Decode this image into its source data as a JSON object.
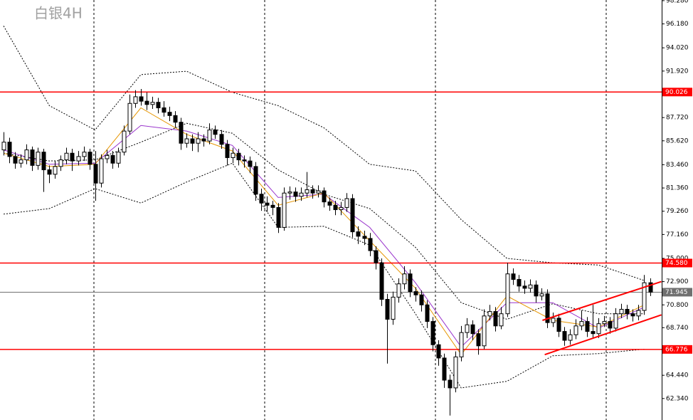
{
  "chart_data": {
    "type": "candlestick",
    "title": "白银4H",
    "ylim": [
      60.4,
      98.34
    ],
    "yticks": [
      {
        "value": 98.28,
        "label": "98.280"
      },
      {
        "value": 96.18,
        "label": "96.180"
      },
      {
        "value": 94.02,
        "label": "94.020"
      },
      {
        "value": 91.92,
        "label": "91.920"
      },
      {
        "value": 87.72,
        "label": "87.720"
      },
      {
        "value": 85.62,
        "label": "85.620"
      },
      {
        "value": 83.46,
        "label": "83.460"
      },
      {
        "value": 81.36,
        "label": "81.360"
      },
      {
        "value": 79.26,
        "label": "79.260"
      },
      {
        "value": 77.16,
        "label": "77.160"
      },
      {
        "value": 75.0,
        "label": "75.000"
      },
      {
        "value": 72.9,
        "label": "72.900"
      },
      {
        "value": 70.8,
        "label": "70.800"
      },
      {
        "value": 68.74,
        "label": "68.740"
      },
      {
        "value": 64.44,
        "label": "64.440"
      },
      {
        "value": 62.34,
        "label": "62.340"
      }
    ],
    "levels": [
      {
        "value": 90.026,
        "color": "#ff0000"
      },
      {
        "value": 74.58,
        "label": "74.580",
        "color": "#ff0000"
      },
      {
        "value": 66.776,
        "color": "#ff0000"
      },
      {
        "value": 71.945,
        "color": "#707070"
      }
    ],
    "candles": [
      [
        84.8,
        86.4,
        84.3,
        85.5
      ],
      [
        85.5,
        85.9,
        83.6,
        84.2
      ],
      [
        84.2,
        84.6,
        83.1,
        83.6
      ],
      [
        83.6,
        84.4,
        83.2,
        83.9
      ],
      [
        83.9,
        85.3,
        83.5,
        84.8
      ],
      [
        84.8,
        85.1,
        82.9,
        83.4
      ],
      [
        83.4,
        85.0,
        83.0,
        84.6
      ],
      [
        84.6,
        84.9,
        81.0,
        83.0
      ],
      [
        83.0,
        83.4,
        81.8,
        82.6
      ],
      [
        82.6,
        83.8,
        82.2,
        83.3
      ],
      [
        83.3,
        84.3,
        82.9,
        83.9
      ],
      [
        83.9,
        85.0,
        83.5,
        84.5
      ],
      [
        84.5,
        84.9,
        82.9,
        83.8
      ],
      [
        83.8,
        84.7,
        83.4,
        84.2
      ],
      [
        84.2,
        85.1,
        83.8,
        84.6
      ],
      [
        84.6,
        84.9,
        83.0,
        83.5
      ],
      [
        83.5,
        84.7,
        80.2,
        81.8
      ],
      [
        81.8,
        84.4,
        81.4,
        84.0
      ],
      [
        84.0,
        84.8,
        83.6,
        84.3
      ],
      [
        84.3,
        84.7,
        83.1,
        83.6
      ],
      [
        83.6,
        85.0,
        83.2,
        84.6
      ],
      [
        84.6,
        87.0,
        84.3,
        86.5
      ],
      [
        86.5,
        89.8,
        86.2,
        89.0
      ],
      [
        89.0,
        90.2,
        88.6,
        89.6
      ],
      [
        89.6,
        90.3,
        88.8,
        89.2
      ],
      [
        89.2,
        90.0,
        88.4,
        88.9
      ],
      [
        88.9,
        89.6,
        88.5,
        89.1
      ],
      [
        89.1,
        89.5,
        88.1,
        88.6
      ],
      [
        88.6,
        89.2,
        87.8,
        88.2
      ],
      [
        88.2,
        88.7,
        87.4,
        87.9
      ],
      [
        87.9,
        88.3,
        86.8,
        87.3
      ],
      [
        87.3,
        87.7,
        84.8,
        85.4
      ],
      [
        85.4,
        86.3,
        85.0,
        85.8
      ],
      [
        85.8,
        86.2,
        84.7,
        85.4
      ],
      [
        85.4,
        86.4,
        84.6,
        85.8
      ],
      [
        85.8,
        86.2,
        85.1,
        85.6
      ],
      [
        85.6,
        87.2,
        85.3,
        86.6
      ],
      [
        86.6,
        87.0,
        85.8,
        86.2
      ],
      [
        86.2,
        86.6,
        84.9,
        85.3
      ],
      [
        85.3,
        85.7,
        83.4,
        84.1
      ],
      [
        84.1,
        85.0,
        83.6,
        84.5
      ],
      [
        84.5,
        84.9,
        83.4,
        83.9
      ],
      [
        83.9,
        84.3,
        83.2,
        83.8
      ],
      [
        83.8,
        84.2,
        82.7,
        83.3
      ],
      [
        83.3,
        83.7,
        80.2,
        80.8
      ],
      [
        80.8,
        81.3,
        79.3,
        80.0
      ],
      [
        80.0,
        80.6,
        79.2,
        79.8
      ],
      [
        79.8,
        80.2,
        78.9,
        79.6
      ],
      [
        79.6,
        80.0,
        77.3,
        77.8
      ],
      [
        77.8,
        81.4,
        77.5,
        80.9
      ],
      [
        80.9,
        81.5,
        80.3,
        81.0
      ],
      [
        81.0,
        81.4,
        80.1,
        80.6
      ],
      [
        80.6,
        81.4,
        80.2,
        80.9
      ],
      [
        80.9,
        82.8,
        80.5,
        81.2
      ],
      [
        81.2,
        81.6,
        80.4,
        80.9
      ],
      [
        80.9,
        81.6,
        80.5,
        81.1
      ],
      [
        81.1,
        81.4,
        79.6,
        80.1
      ],
      [
        80.1,
        80.5,
        79.3,
        79.8
      ],
      [
        79.8,
        80.2,
        78.9,
        79.4
      ],
      [
        79.4,
        80.1,
        78.9,
        79.6
      ],
      [
        79.6,
        80.9,
        79.2,
        80.4
      ],
      [
        80.4,
        80.8,
        76.9,
        77.4
      ],
      [
        77.4,
        77.9,
        76.3,
        77.0
      ],
      [
        77.0,
        77.5,
        76.2,
        76.8
      ],
      [
        76.8,
        77.3,
        75.2,
        75.7
      ],
      [
        75.7,
        76.1,
        74.0,
        74.6
      ],
      [
        74.6,
        75.0,
        70.7,
        71.3
      ],
      [
        71.3,
        71.8,
        65.5,
        69.5
      ],
      [
        69.5,
        72.0,
        69.0,
        71.5
      ],
      [
        71.5,
        73.2,
        71.0,
        72.7
      ],
      [
        72.7,
        74.3,
        72.2,
        73.6
      ],
      [
        73.6,
        74.0,
        71.5,
        72.0
      ],
      [
        72.0,
        72.4,
        71.1,
        71.7
      ],
      [
        71.7,
        72.1,
        70.2,
        70.8
      ],
      [
        70.8,
        71.2,
        68.7,
        69.3
      ],
      [
        69.3,
        69.7,
        66.6,
        67.2
      ],
      [
        67.2,
        67.6,
        65.3,
        66.0
      ],
      [
        66.0,
        66.4,
        63.3,
        64.0
      ],
      [
        64.0,
        64.5,
        60.8,
        63.3
      ],
      [
        63.3,
        66.6,
        62.9,
        66.1
      ],
      [
        66.1,
        68.9,
        65.7,
        68.3
      ],
      [
        68.3,
        69.6,
        67.8,
        69.0
      ],
      [
        69.0,
        69.4,
        67.6,
        68.2
      ],
      [
        68.2,
        68.6,
        66.3,
        67.1
      ],
      [
        67.1,
        70.4,
        66.8,
        69.8
      ],
      [
        69.8,
        70.8,
        69.4,
        70.2
      ],
      [
        70.2,
        70.6,
        68.4,
        68.9
      ],
      [
        68.9,
        70.6,
        68.6,
        70.0
      ],
      [
        70.0,
        74.6,
        69.7,
        73.6
      ],
      [
        73.6,
        74.1,
        72.6,
        73.1
      ],
      [
        73.1,
        73.5,
        72.0,
        72.5
      ],
      [
        72.5,
        73.0,
        71.8,
        72.3
      ],
      [
        72.3,
        73.1,
        71.9,
        72.6
      ],
      [
        72.6,
        73.0,
        71.0,
        71.6
      ],
      [
        71.6,
        72.3,
        71.2,
        71.8
      ],
      [
        71.8,
        72.2,
        68.7,
        69.2
      ],
      [
        69.2,
        70.1,
        68.8,
        69.6
      ],
      [
        69.6,
        70.0,
        67.9,
        68.4
      ],
      [
        68.4,
        68.8,
        67.1,
        67.6
      ],
      [
        67.6,
        68.6,
        67.2,
        68.1
      ],
      [
        68.1,
        69.5,
        67.7,
        68.9
      ],
      [
        68.9,
        70.3,
        68.5,
        69.3
      ],
      [
        69.3,
        69.7,
        67.9,
        68.4
      ],
      [
        68.4,
        70.8,
        67.8,
        68.2
      ],
      [
        68.2,
        69.6,
        67.8,
        69.1
      ],
      [
        69.1,
        69.8,
        68.8,
        69.3
      ],
      [
        69.3,
        69.7,
        68.2,
        68.7
      ],
      [
        68.7,
        70.5,
        68.4,
        70.0
      ],
      [
        70.0,
        70.9,
        69.6,
        70.4
      ],
      [
        70.4,
        70.8,
        69.5,
        70.0
      ],
      [
        70.0,
        70.4,
        69.3,
        69.8
      ],
      [
        69.8,
        70.8,
        69.4,
        70.3
      ],
      [
        70.3,
        73.5,
        69.9,
        72.8
      ],
      [
        72.8,
        73.2,
        71.6,
        71.945
      ]
    ],
    "overlays": [
      {
        "color": "#000000",
        "style": "dotted",
        "x": [
          0,
          8,
          16,
          24,
          32,
          40,
          48,
          56,
          64,
          72,
          80,
          88,
          96,
          104,
          112
        ],
        "values": [
          96.0,
          88.8,
          86.6,
          91.6,
          91.9,
          90.0,
          88.8,
          86.8,
          83.5,
          82.9,
          78.5,
          75.0,
          74.6,
          74.4,
          73.0
        ]
      },
      {
        "color": "#000000",
        "style": "dotted",
        "x": [
          0,
          8,
          16,
          24,
          32,
          40,
          48,
          56,
          64,
          72,
          80,
          88,
          96,
          104,
          112
        ],
        "values": [
          84.5,
          83.8,
          83.9,
          85.5,
          87.2,
          86.3,
          83.0,
          80.8,
          79.5,
          76.0,
          71.0,
          69.5,
          70.9,
          70.0,
          70.0
        ]
      },
      {
        "color": "#000000",
        "style": "dotted",
        "x": [
          0,
          8,
          16,
          24,
          32,
          40,
          48,
          56,
          64,
          72,
          80,
          88,
          96,
          104,
          112
        ],
        "values": [
          79.0,
          79.5,
          81.3,
          80.0,
          81.9,
          83.6,
          77.8,
          77.9,
          76.2,
          70.0,
          63.3,
          63.9,
          66.2,
          66.4,
          66.8
        ]
      },
      {
        "color": "#9933cc",
        "style": "solid",
        "x": [
          0,
          8,
          16,
          24,
          32,
          40,
          48,
          56,
          64,
          72,
          80,
          88,
          96,
          104,
          112
        ],
        "values": [
          84.8,
          83.5,
          83.6,
          87.0,
          86.5,
          85.2,
          80.5,
          80.8,
          77.8,
          72.8,
          67.0,
          71.0,
          71.0,
          68.7,
          70.6
        ]
      },
      {
        "color": "#e69500",
        "style": "solid",
        "x": [
          0,
          8,
          16,
          24,
          32,
          40,
          48,
          56,
          64,
          72,
          80,
          88,
          96,
          104,
          112
        ],
        "values": [
          84.5,
          83.3,
          83.5,
          88.6,
          86.2,
          84.7,
          79.8,
          80.9,
          76.6,
          72.3,
          66.3,
          71.6,
          69.4,
          68.8,
          70.8
        ]
      }
    ],
    "trendlines": [
      {
        "color": "#ff0000",
        "x": [
          94.2,
          115.0
        ],
        "values": [
          69.4,
          72.9
        ]
      },
      {
        "color": "#ff0000",
        "x": [
          94.6,
          115.0
        ],
        "values": [
          66.3,
          69.9
        ]
      }
    ]
  }
}
